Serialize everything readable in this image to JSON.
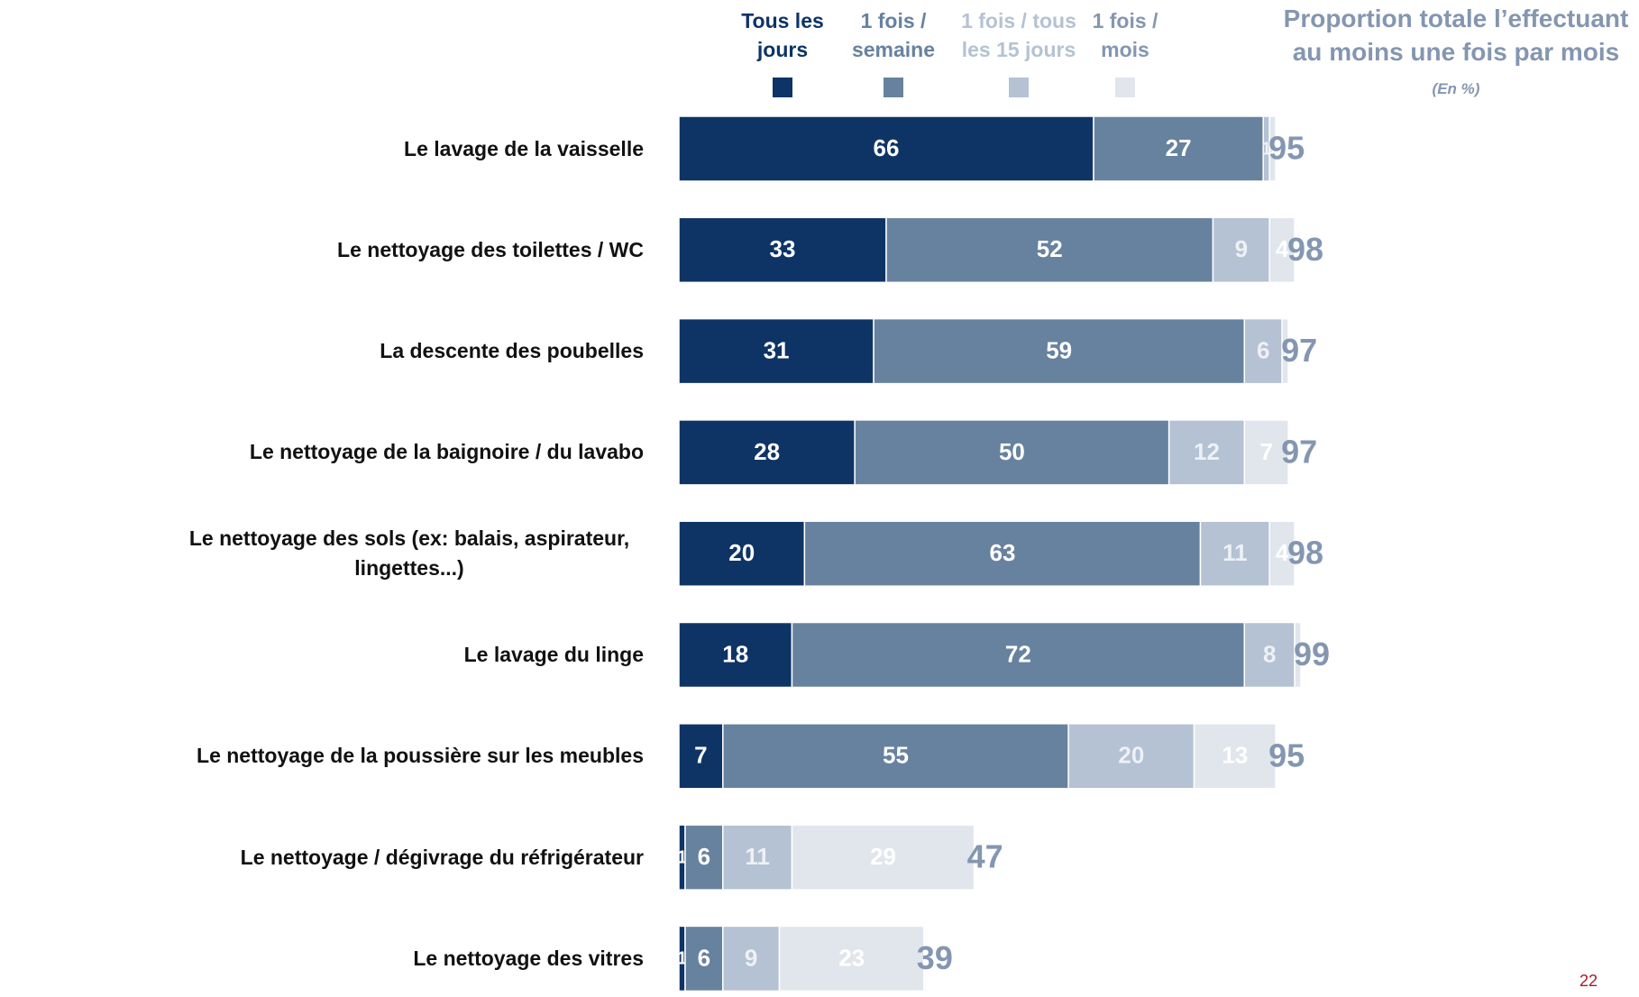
{
  "chart_data": {
    "type": "stacked-bar-horizontal",
    "title": "Proportion totale l’effectuant au moins une fois par mois",
    "subtitle": "(En %)",
    "categories": [
      "Le lavage de la vaisselle",
      "Le nettoyage des toilettes / WC",
      "La descente des poubelles",
      "Le nettoyage de la baignoire / du lavabo",
      "Le nettoyage des sols (ex: balais, aspirateur, lingettes...)",
      "Le lavage du linge",
      "Le nettoyage de la poussière sur les meubles",
      "Le nettoyage / dégivrage du réfrigérateur",
      "Le nettoyage des vitres"
    ],
    "series": [
      {
        "name": "Tous les jours",
        "color": "#0e3466",
        "label_color": "#ffffff",
        "values": [
          66,
          33,
          31,
          28,
          20,
          18,
          7,
          1,
          1
        ]
      },
      {
        "name": "1 fois / semaine",
        "color": "#67829f",
        "label_color": "#ffffff",
        "values": [
          27,
          52,
          59,
          50,
          63,
          72,
          55,
          6,
          6
        ]
      },
      {
        "name": "1 fois / tous les 15 jours",
        "color": "#b4c2d3",
        "label_color": "#eef1f5",
        "values": [
          1,
          9,
          6,
          12,
          11,
          8,
          20,
          11,
          9
        ]
      },
      {
        "name": "1 fois / mois",
        "color": "#e1e6ec",
        "label_color": "#ffffff",
        "values": [
          1,
          4,
          1,
          7,
          4,
          1,
          13,
          29,
          23
        ]
      }
    ],
    "totals": [
      95,
      98,
      97,
      97,
      98,
      99,
      95,
      47,
      39
    ],
    "totals_color": "#8496b0",
    "page_number": "22"
  }
}
